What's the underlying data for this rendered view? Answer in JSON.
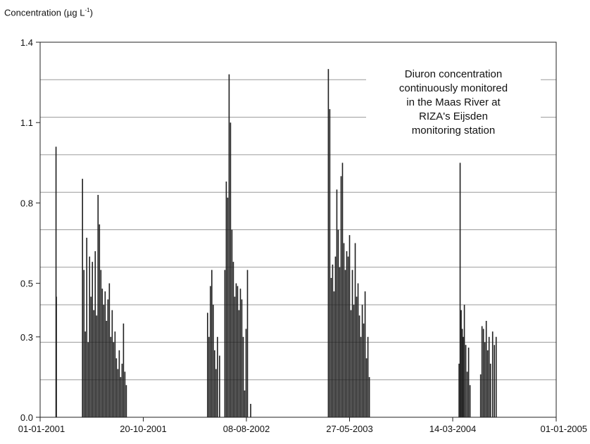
{
  "chart_data": {
    "type": "bar",
    "ylabel_main": "Concentration (µg L",
    "ylabel_sup": "-1",
    "ylabel_close": ")",
    "annotation": [
      "Diuron concentration",
      "continuously monitored",
      "in the Maas River at",
      "RIZA's Eijsden",
      "monitoring station"
    ],
    "xlim": [
      "2001-01-01",
      "2005-01-01"
    ],
    "ylim": [
      0,
      1.4
    ],
    "y_ticks": [
      0.0,
      0.3,
      0.5,
      0.8,
      1.1,
      1.4
    ],
    "y_tick_labels": [
      "0.0",
      "0.3",
      "0.5",
      "0.8",
      "1.1",
      "1.4"
    ],
    "x_ticks": [
      "2001-01-01",
      "2001-10-20",
      "2002-08-08",
      "2003-05-27",
      "2004-03-14",
      "2005-01-01"
    ],
    "x_tick_labels": [
      "01-01-2001",
      "20-10-2001",
      "08-08-2002",
      "27-05-2003",
      "14-03-2004",
      "01-01-2005"
    ],
    "grid": true,
    "series": [
      {
        "x": [
          "2001-02-15",
          "2001-02-16",
          "2001-05-01",
          "2001-05-05",
          "2001-05-09",
          "2001-05-13",
          "2001-05-17",
          "2001-05-21",
          "2001-05-25",
          "2001-05-29",
          "2001-06-02",
          "2001-06-06",
          "2001-06-10",
          "2001-06-14",
          "2001-06-18",
          "2001-06-22",
          "2001-06-26",
          "2001-06-30",
          "2001-07-04",
          "2001-07-08",
          "2001-07-12",
          "2001-07-16",
          "2001-07-20",
          "2001-07-24",
          "2001-07-28",
          "2001-08-01",
          "2001-08-05",
          "2001-08-09",
          "2001-08-13",
          "2001-08-17",
          "2001-08-21",
          "2001-08-25",
          "2001-08-29",
          "2001-09-02",
          "2001-09-06",
          "2001-09-10",
          "2001-09-15",
          "2001-09-20",
          "2001-09-25",
          "2001-10-01",
          "2001-10-05",
          "2002-04-20",
          "2002-04-24",
          "2002-04-28",
          "2002-05-02",
          "2002-05-06",
          "2002-05-10",
          "2002-05-14",
          "2002-05-18",
          "2002-05-24",
          "2002-06-08",
          "2002-06-12",
          "2002-06-16",
          "2002-06-20",
          "2002-06-24",
          "2002-06-28",
          "2002-07-02",
          "2002-07-06",
          "2002-07-10",
          "2002-07-14",
          "2002-07-18",
          "2002-07-22",
          "2002-07-26",
          "2002-07-30",
          "2002-08-03",
          "2002-08-07",
          "2002-08-11",
          "2002-08-20",
          "2003-03-28",
          "2003-04-01",
          "2003-04-05",
          "2003-04-09",
          "2003-04-13",
          "2003-04-17",
          "2003-04-21",
          "2003-04-25",
          "2003-04-29",
          "2003-05-03",
          "2003-05-07",
          "2003-05-11",
          "2003-05-15",
          "2003-05-19",
          "2003-05-23",
          "2003-05-27",
          "2003-05-31",
          "2003-06-04",
          "2003-06-08",
          "2003-06-12",
          "2003-06-16",
          "2003-06-20",
          "2003-06-24",
          "2003-06-28",
          "2003-07-02",
          "2003-07-06",
          "2003-07-10",
          "2003-07-14",
          "2003-07-18",
          "2003-07-22",
          "2004-04-01",
          "2004-04-04",
          "2004-04-07",
          "2004-04-10",
          "2004-04-13",
          "2004-04-16",
          "2004-04-20",
          "2004-04-24",
          "2004-04-28",
          "2004-05-02",
          "2004-06-01",
          "2004-06-05",
          "2004-06-09",
          "2004-06-13",
          "2004-06-17",
          "2004-06-21",
          "2004-06-25",
          "2004-06-29",
          "2004-07-05",
          "2004-07-10",
          "2004-07-15"
        ],
        "y": [
          1.01,
          0.45,
          0.89,
          0.55,
          0.32,
          0.67,
          0.28,
          0.6,
          0.45,
          0.58,
          0.4,
          0.62,
          0.38,
          0.83,
          0.72,
          0.55,
          0.48,
          0.42,
          0.47,
          0.36,
          0.44,
          0.5,
          0.3,
          0.4,
          0.28,
          0.32,
          0.22,
          0.18,
          0.25,
          0.15,
          0.2,
          0.35,
          0.17,
          0.12,
          0.0,
          0.0,
          0.0,
          0.0,
          0.0,
          0.0,
          0.0,
          0.39,
          0.3,
          0.49,
          0.55,
          0.42,
          0.25,
          0.18,
          0.3,
          0.23,
          0.55,
          0.88,
          0.82,
          1.28,
          1.1,
          0.7,
          0.58,
          0.45,
          0.5,
          0.49,
          0.4,
          0.48,
          0.44,
          0.3,
          0.1,
          0.33,
          0.55,
          0.05,
          1.3,
          1.15,
          0.52,
          0.57,
          0.47,
          0.6,
          0.85,
          0.7,
          0.56,
          0.9,
          0.95,
          0.65,
          0.55,
          0.62,
          0.6,
          0.68,
          0.4,
          0.55,
          0.42,
          0.65,
          0.45,
          0.5,
          0.38,
          0.3,
          0.42,
          0.35,
          0.47,
          0.22,
          0.3,
          0.15,
          0.2,
          0.95,
          0.4,
          0.33,
          0.3,
          0.42,
          0.27,
          0.17,
          0.26,
          0.12,
          0.16,
          0.34,
          0.33,
          0.28,
          0.36,
          0.25,
          0.3,
          0.2,
          0.32,
          0.27,
          0.3
        ]
      }
    ]
  }
}
